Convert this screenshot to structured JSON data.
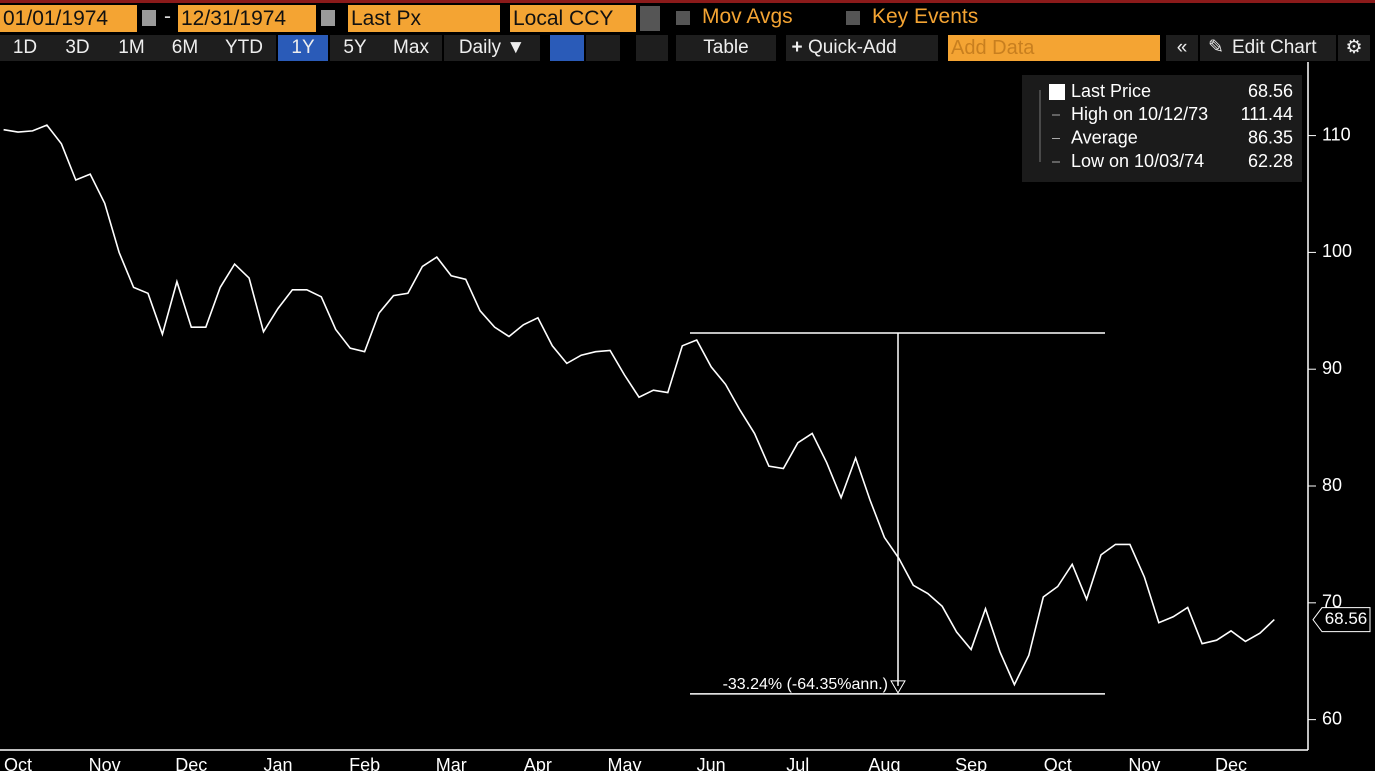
{
  "toolbar": {
    "start_date": "01/01/1974",
    "separator": "-",
    "end_date": "12/31/1974",
    "field": "Last Px",
    "currency": "Local CCY",
    "mov_avgs": "Mov Avgs",
    "key_events": "Key Events"
  },
  "buttons": {
    "periods": [
      "1D",
      "3D",
      "1M",
      "6M",
      "YTD",
      "1Y",
      "5Y",
      "Max"
    ],
    "active": "1Y",
    "frequency": "Daily ▼",
    "table": "Table",
    "quick_add": "Quick-Add",
    "add_data": "Add Data",
    "edit_chart": "Edit Chart"
  },
  "chart_data": {
    "type": "line",
    "categories": [
      null,
      "Oct",
      null,
      null,
      null,
      null,
      null,
      "Nov",
      null,
      null,
      null,
      null,
      null,
      "Dec",
      null,
      null,
      null,
      null,
      null,
      "Jan",
      null,
      null,
      null,
      null,
      null,
      "Feb",
      null,
      null,
      null,
      null,
      null,
      "Mar",
      null,
      null,
      null,
      null,
      null,
      "Apr",
      null,
      null,
      null,
      null,
      null,
      "May",
      null,
      null,
      null,
      null,
      null,
      "Jun",
      null,
      null,
      null,
      null,
      null,
      "Jul",
      null,
      null,
      null,
      null,
      null,
      "Aug",
      null,
      null,
      null,
      null,
      null,
      "Sep",
      null,
      null,
      null,
      null,
      null,
      "Oct",
      null,
      null,
      null,
      null,
      null,
      "Nov",
      null,
      null,
      null,
      null,
      null,
      "Dec",
      null,
      null,
      null
    ],
    "series": [
      {
        "name": "Last Price",
        "color": "#ffffff",
        "values": [
          110.5,
          110.3,
          110.4,
          110.9,
          109.3,
          106.2,
          106.7,
          104.2,
          100.0,
          97.0,
          96.5,
          93.0,
          97.5,
          93.6,
          93.6,
          97.0,
          99.0,
          97.8,
          93.2,
          95.2,
          96.8,
          96.8,
          96.2,
          93.4,
          91.8,
          91.5,
          94.8,
          96.3,
          96.5,
          98.8,
          99.6,
          98.0,
          97.7,
          95.0,
          93.6,
          92.8,
          93.8,
          94.4,
          92.0,
          90.5,
          91.2,
          91.5,
          91.6,
          89.5,
          87.6,
          88.2,
          88.0,
          92.0,
          92.5,
          90.2,
          88.7,
          86.5,
          84.5,
          81.7,
          81.5,
          83.7,
          84.5,
          82.0,
          79.0,
          82.4,
          78.8,
          75.6,
          73.8,
          71.5,
          70.8,
          69.7,
          67.5,
          66.0,
          69.5,
          65.8,
          63.0,
          65.5,
          70.5,
          71.4,
          73.3,
          70.3,
          74.1,
          75.0,
          75.0,
          72.2,
          68.3,
          68.8,
          69.6,
          66.5,
          66.8,
          67.6,
          66.7,
          67.4,
          68.56
        ]
      }
    ],
    "stats": [
      {
        "label": "High on 10/12/73",
        "value": 111.44
      },
      {
        "label": "Average",
        "value": 86.35
      },
      {
        "label": "Low on 10/03/74",
        "value": 62.28
      }
    ],
    "annotation": {
      "label": "-33.24% (-64.35%ann.)",
      "high": 93.1,
      "low": 62.2
    },
    "ylim": [
      57.4,
      116.3
    ],
    "yticks": [
      60,
      70,
      80,
      90,
      100,
      110
    ]
  }
}
